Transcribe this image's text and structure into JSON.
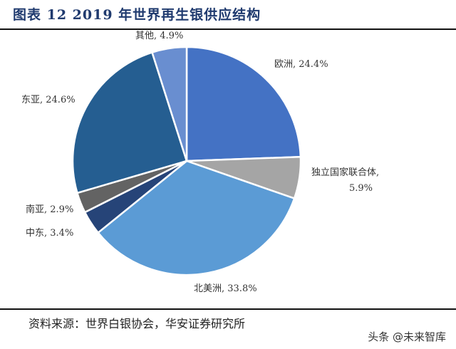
{
  "title": "图表 12 2019 年世界再生银供应结构",
  "source": "资料来源：世界白银协会，华安证券研究所",
  "watermark": "头条 @未来智库",
  "chart_data": {
    "type": "pie",
    "title": "图表 12 2019 年世界再生银供应结构",
    "start": "12 o'clock, clockwise",
    "slices": [
      {
        "name": "欧洲",
        "value": 24.4,
        "label": "欧洲, 24.4%",
        "color": "#4472C4"
      },
      {
        "name": "独立国家联合体",
        "value": 5.9,
        "label": "独立国家联合体,",
        "label2": "5.9%",
        "color": "#A5A5A5"
      },
      {
        "name": "北美洲",
        "value": 33.8,
        "label": "北美洲, 33.8%",
        "color": "#5B9BD5"
      },
      {
        "name": "中东",
        "value": 3.4,
        "label": "中东, 3.4%",
        "color": "#264478"
      },
      {
        "name": "南亚",
        "value": 2.9,
        "label": "南亚, 2.9%",
        "color": "#636363"
      },
      {
        "name": "东亚",
        "value": 24.6,
        "label": "东亚, 24.6%",
        "color": "#255E91"
      },
      {
        "name": "其他",
        "value": 4.9,
        "label": "其他, 4.9%",
        "color": "#698ED0"
      }
    ]
  }
}
